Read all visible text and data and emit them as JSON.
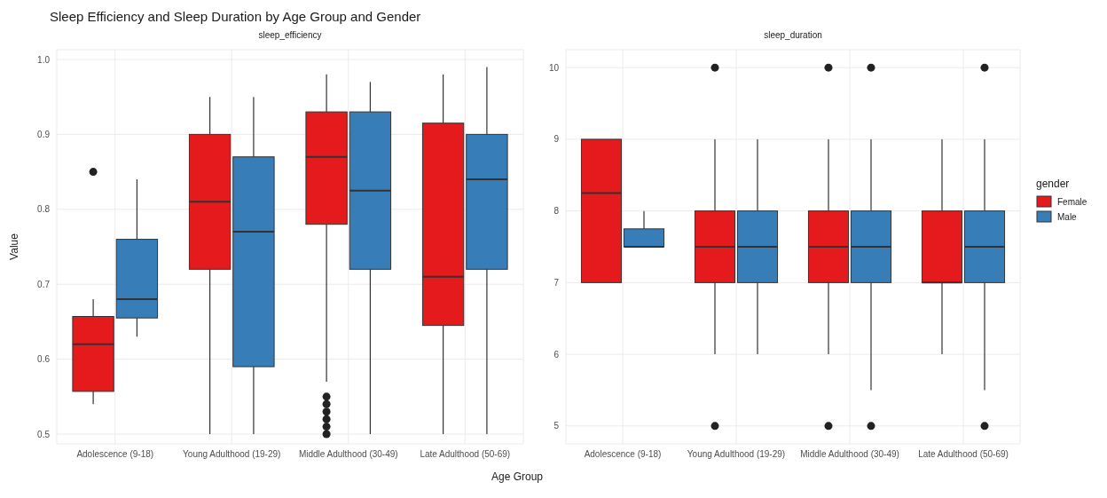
{
  "chart_data": [
    {
      "type": "box",
      "title": "Sleep Efficiency and Sleep Duration by Age Group and Gender",
      "subtitle": "sleep_efficiency",
      "xlabel": "Age Group",
      "ylabel": "Value",
      "categories": [
        "Adolescence (9-18)",
        "Young Adulthood (19-29)",
        "Middle Adulthood (30-49)",
        "Late Adulthood (50-69)"
      ],
      "ylim": [
        0.487,
        1.013
      ],
      "yticks": [
        0.5,
        0.6,
        0.7,
        0.8,
        0.9,
        {
          "value": 1,
          "label": "1.0"
        }
      ],
      "grid": true,
      "series": [
        {
          "color": "#e41a1c",
          "boxes": [
            {
              "low": 0.54,
              "q1": 0.557,
              "median": 0.62,
              "q3": 0.657,
              "high": 0.68,
              "outliers": [
                0.85
              ]
            },
            {
              "low": 0.5,
              "q1": 0.72,
              "median": 0.81,
              "q3": 0.9,
              "high": 0.95
            },
            {
              "low": 0.57,
              "q1": 0.78,
              "median": 0.87,
              "q3": 0.93,
              "high": 0.98,
              "outliers": [
                0.5,
                0.51,
                0.52,
                0.53,
                0.54,
                0.55
              ]
            },
            {
              "low": 0.5,
              "q1": 0.645,
              "median": 0.71,
              "q3": 0.915,
              "high": 0.98
            }
          ]
        },
        {
          "color": "#377eb8",
          "boxes": [
            {
              "low": 0.63,
              "q1": 0.655,
              "median": 0.68,
              "q3": 0.76,
              "high": 0.84
            },
            {
              "low": 0.5,
              "q1": 0.59,
              "median": 0.77,
              "q3": 0.87,
              "high": 0.95
            },
            {
              "low": 0.5,
              "q1": 0.72,
              "median": 0.825,
              "q3": 0.93,
              "high": 0.97
            },
            {
              "low": 0.5,
              "q1": 0.72,
              "median": 0.84,
              "q3": 0.9,
              "high": 0.99
            }
          ]
        }
      ]
    },
    {
      "type": "box",
      "subtitle": "sleep_duration",
      "categories": [
        "Adolescence (9-18)",
        "Young Adulthood (19-29)",
        "Middle Adulthood (30-49)",
        "Late Adulthood (50-69)"
      ],
      "ylim": [
        4.75,
        10.25
      ],
      "yticks": [
        5,
        6,
        7,
        8,
        9,
        10
      ],
      "grid": true,
      "legend": "right",
      "legend_title": "gender",
      "series": [
        {
          "name": "Female",
          "color": "#e41a1c",
          "boxes": [
            {
              "low": 7,
              "q1": 7,
              "median": 8.25,
              "q3": 9,
              "high": 9
            },
            {
              "low": 6,
              "q1": 7,
              "median": 7.5,
              "q3": 8,
              "high": 9,
              "outliers": [
                5,
                10
              ]
            },
            {
              "low": 6,
              "q1": 7,
              "median": 7.5,
              "q3": 8,
              "high": 9,
              "outliers": [
                5,
                10
              ]
            },
            {
              "low": 6,
              "q1": 7,
              "median": 7,
              "q3": 8,
              "high": 9
            }
          ]
        },
        {
          "name": "Male",
          "color": "#377eb8",
          "boxes": [
            {
              "low": 7.5,
              "q1": 7.5,
              "median": 7.5,
              "q3": 7.75,
              "high": 8
            },
            {
              "low": 6,
              "q1": 7,
              "median": 7.5,
              "q3": 8,
              "high": 9
            },
            {
              "low": 5.5,
              "q1": 7,
              "median": 7.5,
              "q3": 8,
              "high": 9,
              "outliers": [
                5,
                10
              ]
            },
            {
              "low": 5.5,
              "q1": 7,
              "median": 7.5,
              "q3": 8,
              "high": 9,
              "outliers": [
                5,
                10
              ]
            }
          ]
        }
      ]
    }
  ]
}
